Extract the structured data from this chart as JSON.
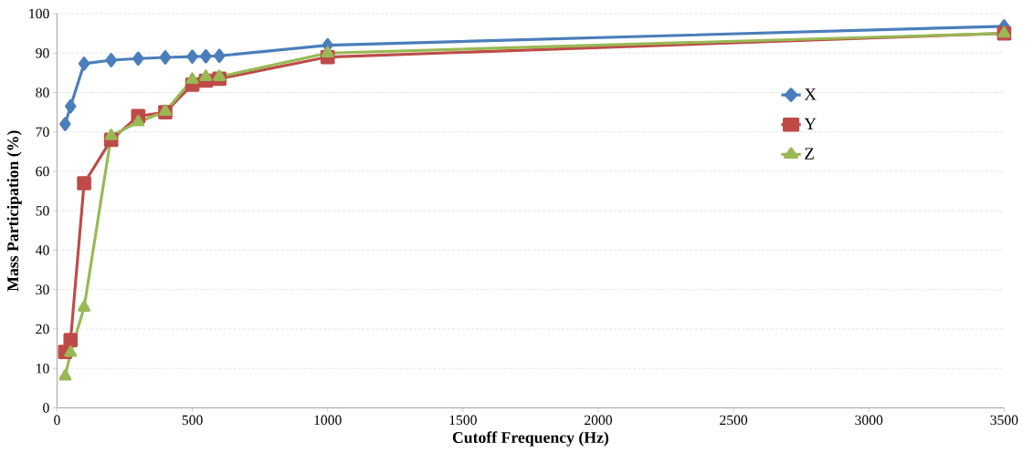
{
  "chart_data": {
    "type": "line",
    "xlabel": "Cutoff Frequency (Hz)",
    "ylabel": "Mass Participation (%)",
    "x": [
      30,
      50,
      100,
      200,
      300,
      400,
      500,
      550,
      600,
      1000,
      3500
    ],
    "series": [
      {
        "name": "X",
        "color": "#4a7ebb",
        "marker": "diamond",
        "values": [
          72,
          76.5,
          87.3,
          88.2,
          88.6,
          88.9,
          89.1,
          89.2,
          89.3,
          92,
          96.8
        ]
      },
      {
        "name": "Y",
        "color": "#be4b48",
        "marker": "square",
        "values": [
          14.2,
          17.2,
          57,
          68,
          74,
          75,
          82,
          83,
          83.5,
          89,
          95
        ]
      },
      {
        "name": "Z",
        "color": "#98b954",
        "marker": "triangle",
        "values": [
          8,
          14,
          25.5,
          69,
          72.5,
          75.2,
          83.3,
          84,
          84,
          90,
          95
        ]
      }
    ],
    "xlim": [
      0,
      3500
    ],
    "xticks": [
      0,
      500,
      1000,
      1500,
      2000,
      2500,
      3000,
      3500
    ],
    "ylim": [
      0,
      100
    ],
    "yticks": [
      0,
      10,
      20,
      30,
      40,
      50,
      60,
      70,
      80,
      90,
      100
    ],
    "grid": "y",
    "legend": "right",
    "line_style": "solid"
  }
}
